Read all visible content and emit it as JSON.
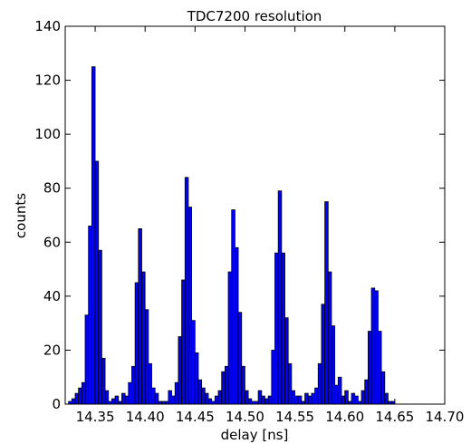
{
  "chart_data": {
    "type": "bar",
    "title": "TDC7200 resolution",
    "xlabel": "delay [ns]",
    "ylabel": "counts",
    "xlim": [
      14.32,
      14.7
    ],
    "ylim": [
      0,
      140
    ],
    "xticks": [
      14.35,
      14.4,
      14.45,
      14.5,
      14.55,
      14.6,
      14.65,
      14.7
    ],
    "xtick_labels": [
      "14.35",
      "14.40",
      "14.45",
      "14.50",
      "14.55",
      "14.60",
      "14.65",
      "14.70"
    ],
    "yticks": [
      0,
      20,
      40,
      60,
      80,
      100,
      120,
      140
    ],
    "ytick_labels": [
      "0",
      "20",
      "40",
      "60",
      "80",
      "100",
      "120",
      "140"
    ],
    "grid": false,
    "bar_color": "#0000ff",
    "bin_start": 14.3233,
    "bin_width": 0.003333,
    "values": [
      1,
      2,
      4,
      6,
      8,
      33,
      66,
      125,
      90,
      57,
      17,
      5,
      1,
      2,
      3,
      1,
      4,
      3,
      8,
      14,
      45,
      65,
      49,
      35,
      15,
      6,
      4,
      1,
      1,
      1,
      5,
      3,
      8,
      25,
      46,
      84,
      73,
      31,
      19,
      9,
      6,
      4,
      2,
      1,
      3,
      5,
      12,
      14,
      49,
      72,
      58,
      34,
      14,
      5,
      2,
      1,
      1,
      5,
      3,
      2,
      3,
      20,
      56,
      79,
      56,
      32,
      15,
      5,
      3,
      3,
      1,
      4,
      3,
      4,
      6,
      15,
      37,
      75,
      49,
      29,
      7,
      10,
      3,
      5,
      1,
      4,
      3,
      1,
      5,
      9,
      27,
      43,
      42,
      27,
      12,
      4,
      1,
      1
    ]
  }
}
